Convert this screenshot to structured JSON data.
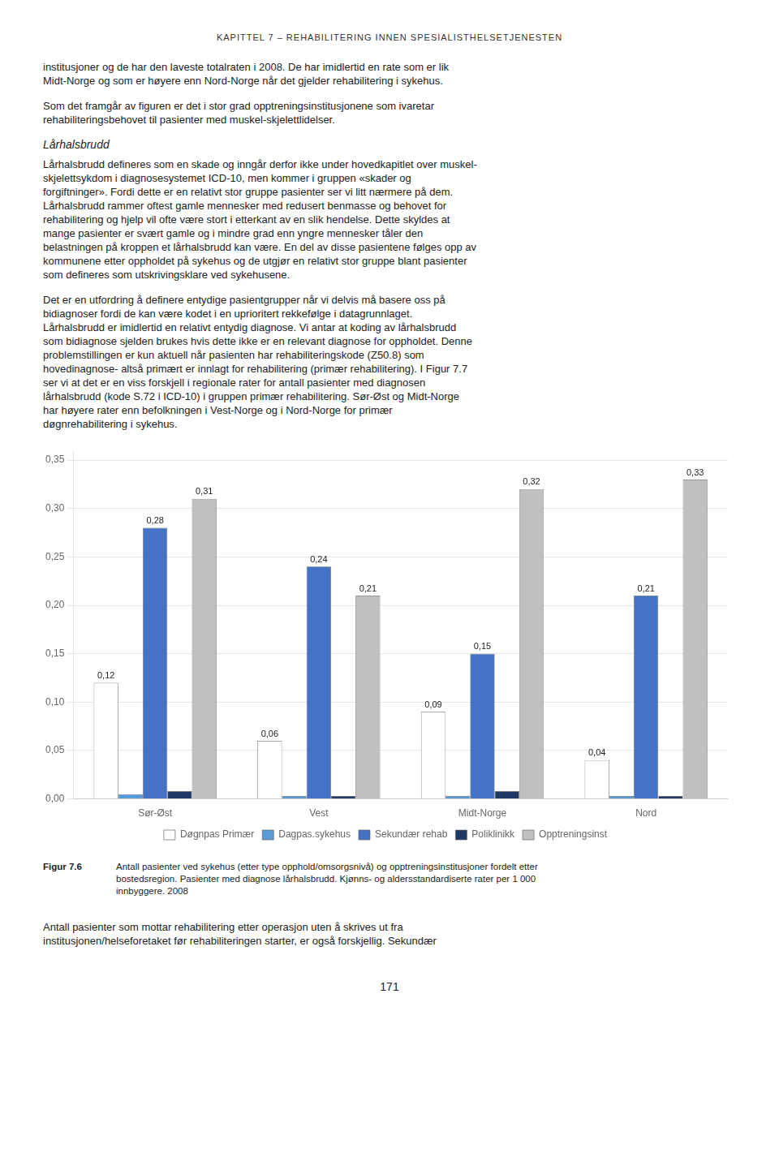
{
  "header": "KAPITTEL 7 – REHABILITERING INNEN SPESIALISTHELSETJENESTEN",
  "paragraphs_before": [
    "institusjoner og de har den laveste totalraten i 2008. De har imidlertid en rate som er lik\nMidt-Norge og som er høyere enn Nord-Norge når det gjelder rehabilitering i sykehus.",
    "Som det framgår av figuren er det i stor grad opptreningsinstitusjonene som ivaretar\nrehabiliteringsbehovet til pasienter med muskel-skjelettlidelser."
  ],
  "heading": "Lårhalsbrudd",
  "paragraphs_after_heading": [
    "Lårhalsbrudd defineres som en skade og inngår derfor ikke under hovedkapitlet over muskel-\nskjelettsykdom i diagnosesystemet ICD-10, men kommer i gruppen «skader og\nforgiftninger». Fordi dette er en relativt stor gruppe pasienter ser vi litt nærmere på dem.\nLårhalsbrudd rammer oftest gamle mennesker med redusert benmasse og behovet for\nrehabilitering og hjelp vil ofte være stort i etterkant av en slik hendelse. Dette skyldes at\nmange pasienter er svært gamle og i mindre grad enn yngre mennesker tåler den\nbelastningen på kroppen et lårhalsbrudd kan være. En del av disse pasientene følges opp av\nkommunene etter oppholdet på sykehus og de utgjør en relativt stor gruppe blant pasienter\nsom defineres som utskrivingsklare ved sykehusene.",
    "Det er en utfordring å definere entydige pasientgrupper når vi delvis må basere oss på\nbidiagnoser fordi de kan være kodet i en uprioritert rekkefølge i datagrunnlaget.\nLårhalsbrudd er imidlertid en relativt entydig diagnose. Vi antar at koding av lårhalsbrudd\nsom bidiagnose sjelden brukes hvis dette ikke er en relevant diagnose for oppholdet. Denne\nproblemstillingen er kun aktuell når pasienten har rehabiliteringskode (Z50.8) som\nhovedinagnose- altså primært er innlagt for rehabilitering (primær rehabilitering). I Figur 7.7\nser vi at det er en viss forskjell i regionale rater for antall pasienter med diagnosen\nlårhalsbrudd (kode S.72 i ICD-10) i gruppen primær rehabilitering. Sør-Øst og Midt-Norge\nhar høyere rater enn befolkningen i Vest-Norge og i Nord-Norge for primær\ndøgnrehabilitering i sykehus."
  ],
  "caption_title": "Figur 7.6",
  "caption": "Antall pasienter ved sykehus (etter type opphold/omsorgsnivå) og opptreningsinstitusjoner fordelt etter\nbostedsregion. Pasienter med diagnose lårhalsbrudd. Kjønns- og aldersstandardiserte rater per 1 000\ninnbyggere. 2008",
  "footer_text": "Antall pasienter som mottar rehabilitering etter operasjon uten å skrives ut fra\ninstitusjonen/helseforetaket før rehabiliteringen starter, er også forskjellig. Sekundær",
  "page_number": "171",
  "chart_data": {
    "type": "bar",
    "categories": [
      "Sør-Øst",
      "Vest",
      "Midt-Norge",
      "Nord"
    ],
    "series": [
      {
        "name": "Døgnpas Primær",
        "color": "#FFFFFF",
        "values": [
          0.12,
          0.06,
          0.09,
          0.04
        ],
        "data_labels": true,
        "value_labels": [
          "0,12",
          "0,06",
          "0,09",
          "0,04"
        ]
      },
      {
        "name": "Dagpas.sykehus",
        "color": "#5B9BD5",
        "values": [
          0.005,
          0.003,
          0.003,
          0.003
        ]
      },
      {
        "name": "Sekundær rehab",
        "color": "#4472C4",
        "values": [
          0.28,
          0.24,
          0.15,
          0.21
        ],
        "data_labels": true,
        "value_labels": [
          "0,28",
          "0,24",
          "0,15",
          "0,21"
        ]
      },
      {
        "name": "Poliklinikk",
        "color": "#1F3864",
        "values": [
          0.008,
          0.003,
          0.008,
          0.003
        ]
      },
      {
        "name": "Opptreningsinst",
        "color": "#C0C0C0",
        "values": [
          0.31,
          0.21,
          0.32,
          0.33
        ],
        "data_labels": true,
        "value_labels": [
          "0,31",
          "0,21",
          "0,32",
          "0,33"
        ]
      }
    ],
    "ylim": [
      0.0,
      0.36
    ],
    "yticks": [
      {
        "value": 0.0,
        "label": "0,00"
      },
      {
        "value": 0.05,
        "label": "0,05"
      },
      {
        "value": 0.1,
        "label": "0,10"
      },
      {
        "value": 0.15,
        "label": "0,15"
      },
      {
        "value": 0.2,
        "label": "0,20"
      },
      {
        "value": 0.25,
        "label": "0,25"
      },
      {
        "value": 0.3,
        "label": "0,30"
      },
      {
        "value": 0.35,
        "label": "0,35"
      }
    ],
    "grid": true,
    "legend": "bottom"
  }
}
